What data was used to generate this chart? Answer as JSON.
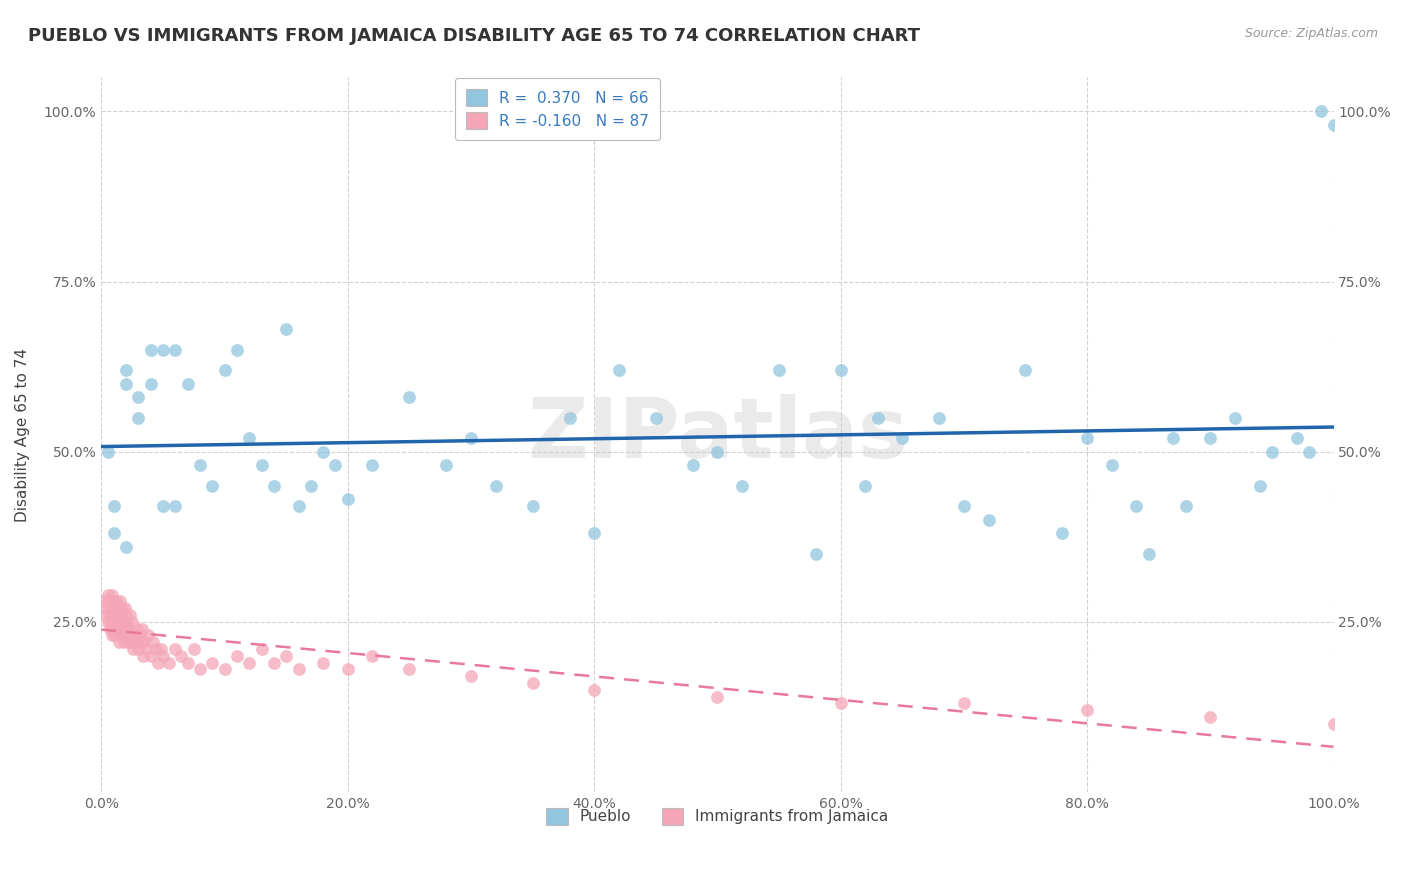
{
  "title": "PUEBLO VS IMMIGRANTS FROM JAMAICA DISABILITY AGE 65 TO 74 CORRELATION CHART",
  "source": "Source: ZipAtlas.com",
  "ylabel": "Disability Age 65 to 74",
  "xlim": [
    0.0,
    1.0
  ],
  "ylim": [
    0.0,
    1.05
  ],
  "xtick_labels": [
    "0.0%",
    "20.0%",
    "40.0%",
    "60.0%",
    "80.0%",
    "100.0%"
  ],
  "xtick_vals": [
    0.0,
    0.2,
    0.4,
    0.6,
    0.8,
    1.0
  ],
  "ytick_labels": [
    "25.0%",
    "50.0%",
    "75.0%",
    "100.0%"
  ],
  "ytick_vals": [
    0.25,
    0.5,
    0.75,
    1.0
  ],
  "blue_color": "#92c5de",
  "pink_color": "#f4a6b8",
  "blue_line_color": "#2166ac",
  "pink_line_color": "#e8799a",
  "legend_blue_label": "Pueblo",
  "legend_pink_label": "Immigrants from Jamaica",
  "R_blue": 0.37,
  "N_blue": 66,
  "R_pink": -0.16,
  "N_pink": 87,
  "blue_x": [
    0.005,
    0.01,
    0.01,
    0.02,
    0.02,
    0.02,
    0.03,
    0.03,
    0.04,
    0.04,
    0.05,
    0.05,
    0.06,
    0.06,
    0.07,
    0.08,
    0.09,
    0.1,
    0.11,
    0.12,
    0.13,
    0.14,
    0.15,
    0.16,
    0.17,
    0.18,
    0.19,
    0.2,
    0.22,
    0.25,
    0.28,
    0.3,
    0.32,
    0.35,
    0.38,
    0.4,
    0.42,
    0.45,
    0.48,
    0.5,
    0.52,
    0.55,
    0.58,
    0.6,
    0.62,
    0.63,
    0.65,
    0.68,
    0.7,
    0.72,
    0.75,
    0.78,
    0.8,
    0.82,
    0.84,
    0.85,
    0.87,
    0.88,
    0.9,
    0.92,
    0.94,
    0.95,
    0.97,
    0.98,
    0.99,
    1.0
  ],
  "blue_y": [
    0.5,
    0.38,
    0.42,
    0.6,
    0.62,
    0.36,
    0.55,
    0.58,
    0.6,
    0.65,
    0.65,
    0.42,
    0.42,
    0.65,
    0.6,
    0.48,
    0.45,
    0.62,
    0.65,
    0.52,
    0.48,
    0.45,
    0.68,
    0.42,
    0.45,
    0.5,
    0.48,
    0.43,
    0.48,
    0.58,
    0.48,
    0.52,
    0.45,
    0.42,
    0.55,
    0.38,
    0.62,
    0.55,
    0.48,
    0.5,
    0.45,
    0.62,
    0.35,
    0.62,
    0.45,
    0.55,
    0.52,
    0.55,
    0.42,
    0.4,
    0.62,
    0.38,
    0.52,
    0.48,
    0.42,
    0.35,
    0.52,
    0.42,
    0.52,
    0.55,
    0.45,
    0.5,
    0.52,
    0.5,
    1.0,
    0.98
  ],
  "pink_x": [
    0.002,
    0.003,
    0.004,
    0.005,
    0.005,
    0.006,
    0.007,
    0.007,
    0.008,
    0.008,
    0.009,
    0.009,
    0.01,
    0.01,
    0.01,
    0.011,
    0.011,
    0.012,
    0.012,
    0.013,
    0.013,
    0.014,
    0.014,
    0.015,
    0.015,
    0.016,
    0.016,
    0.017,
    0.017,
    0.018,
    0.018,
    0.019,
    0.019,
    0.02,
    0.02,
    0.021,
    0.022,
    0.022,
    0.023,
    0.024,
    0.025,
    0.025,
    0.026,
    0.027,
    0.028,
    0.029,
    0.03,
    0.031,
    0.032,
    0.033,
    0.034,
    0.035,
    0.036,
    0.038,
    0.04,
    0.042,
    0.044,
    0.046,
    0.048,
    0.05,
    0.055,
    0.06,
    0.065,
    0.07,
    0.075,
    0.08,
    0.09,
    0.1,
    0.11,
    0.12,
    0.13,
    0.14,
    0.15,
    0.16,
    0.18,
    0.2,
    0.22,
    0.25,
    0.3,
    0.35,
    0.4,
    0.5,
    0.6,
    0.7,
    0.8,
    0.9,
    1.0
  ],
  "pink_y": [
    0.28,
    0.27,
    0.26,
    0.29,
    0.25,
    0.28,
    0.26,
    0.24,
    0.27,
    0.25,
    0.29,
    0.23,
    0.28,
    0.26,
    0.24,
    0.27,
    0.23,
    0.28,
    0.25,
    0.26,
    0.24,
    0.27,
    0.22,
    0.25,
    0.28,
    0.23,
    0.26,
    0.24,
    0.27,
    0.22,
    0.25,
    0.24,
    0.27,
    0.23,
    0.26,
    0.25,
    0.22,
    0.24,
    0.26,
    0.22,
    0.23,
    0.25,
    0.21,
    0.23,
    0.22,
    0.24,
    0.21,
    0.23,
    0.22,
    0.24,
    0.2,
    0.22,
    0.21,
    0.23,
    0.2,
    0.22,
    0.21,
    0.19,
    0.21,
    0.2,
    0.19,
    0.21,
    0.2,
    0.19,
    0.21,
    0.18,
    0.19,
    0.18,
    0.2,
    0.19,
    0.21,
    0.19,
    0.2,
    0.18,
    0.19,
    0.18,
    0.2,
    0.18,
    0.17,
    0.16,
    0.15,
    0.14,
    0.13,
    0.13,
    0.12,
    0.11,
    0.1
  ],
  "background_color": "#ffffff",
  "grid_color": "#cccccc",
  "watermark": "ZIPatlas",
  "title_fontsize": 13,
  "axis_label_fontsize": 11,
  "tick_fontsize": 10,
  "legend_fontsize": 11
}
